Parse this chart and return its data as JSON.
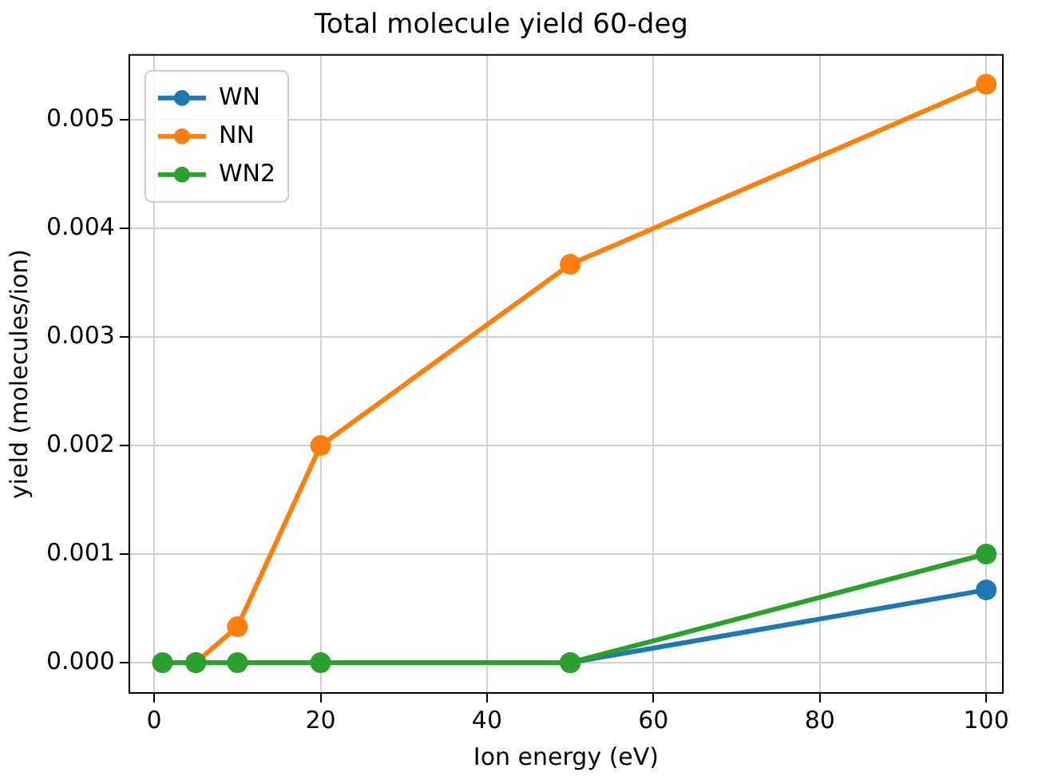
{
  "chart_data": {
    "type": "line",
    "title": "Total molecule yield 60-deg",
    "xlabel": "Ion energy (eV)",
    "ylabel": "yield (molecules/ion)",
    "x": [
      1,
      5,
      10,
      20,
      50,
      100
    ],
    "series": [
      {
        "name": "WN",
        "color": "#1f77b4",
        "values": [
          null,
          null,
          null,
          null,
          0,
          0.00067
        ]
      },
      {
        "name": "NN",
        "color": "#ff7f0e",
        "values": [
          null,
          0,
          0.00033,
          0.002,
          0.00367,
          0.00533
        ]
      },
      {
        "name": "WN2",
        "color": "#2ca02c",
        "values": [
          0,
          0,
          0,
          0,
          0,
          0.001
        ]
      }
    ],
    "xlim": [
      -3,
      102
    ],
    "xticks": [
      0,
      20,
      40,
      60,
      80,
      100
    ],
    "ylim": [
      -0.00028,
      0.0056
    ],
    "yticks": [
      {
        "value": 0,
        "label": "0.000"
      },
      {
        "value": 0.001,
        "label": "0.001"
      },
      {
        "value": 0.002,
        "label": "0.002"
      },
      {
        "value": 0.003,
        "label": "0.003"
      },
      {
        "value": 0.004,
        "label": "0.004"
      },
      {
        "value": 0.005,
        "label": "0.005"
      }
    ],
    "grid": true,
    "legend": "top left",
    "marker": "circle",
    "line_style": "solid"
  }
}
